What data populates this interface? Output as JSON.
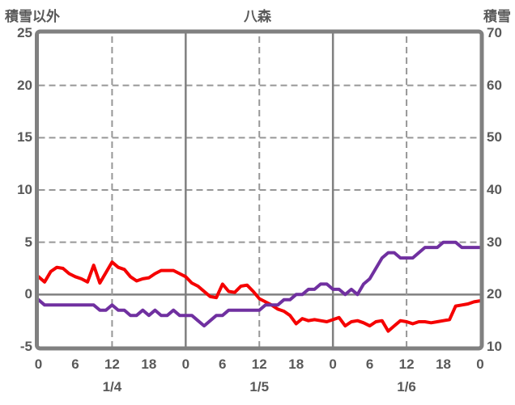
{
  "title": "八森",
  "left_axis": {
    "title": "積雪以外",
    "ticks": [
      "25",
      "20",
      "15",
      "10",
      "5",
      "0",
      "-5"
    ],
    "min": -5,
    "max": 25
  },
  "right_axis": {
    "title": "積雪",
    "ticks": [
      "70",
      "60",
      "50",
      "40",
      "30",
      "20",
      "10"
    ],
    "min": 10,
    "max": 70
  },
  "x_axis": {
    "hour_labels": [
      "0",
      "6",
      "12",
      "18",
      "0",
      "6",
      "12",
      "18",
      "0",
      "6",
      "12",
      "18",
      "0"
    ],
    "date_labels": [
      "1/4",
      "1/5",
      "1/6"
    ]
  },
  "colors": {
    "red_series": "#f50000",
    "purple_series": "#7030a0",
    "solid_grid": "#808080",
    "dashed_grid": "#979797",
    "border": "#808080",
    "text": "#595959",
    "background": "#ffffff"
  },
  "chart_data": {
    "type": "line",
    "x_unit": "hour",
    "x_start_hour": 0,
    "x_end_hour": 72,
    "hours_per_point": 1,
    "title": "八森",
    "left_axis_range": [
      -5,
      25
    ],
    "right_axis_range": [
      10,
      70
    ],
    "grid": "solid vertical lines at day boundaries (0h), dashed vertical at 12h of each day, dashed horizontal at left 5/10/15/20, solid horizontal zero line at left 0 (= right 20)",
    "series": [
      {
        "name": "積雪以外",
        "axis": "left",
        "color": "#f50000",
        "values": [
          1.7,
          1.2,
          2.2,
          2.6,
          2.5,
          2.0,
          1.7,
          1.5,
          1.2,
          2.8,
          1.1,
          2.1,
          3.1,
          2.6,
          2.4,
          1.7,
          1.3,
          1.5,
          1.6,
          2.0,
          2.3,
          2.3,
          2.3,
          2.0,
          1.7,
          1.1,
          0.8,
          0.3,
          -0.2,
          -0.3,
          1.0,
          0.3,
          0.2,
          0.8,
          0.9,
          0.3,
          -0.4,
          -0.7,
          -1.0,
          -1.4,
          -1.6,
          -2.0,
          -2.8,
          -2.3,
          -2.5,
          -2.4,
          -2.5,
          -2.6,
          -2.4,
          -2.2,
          -3.0,
          -2.6,
          -2.5,
          -2.7,
          -3.0,
          -2.6,
          -2.5,
          -3.5,
          -3.0,
          -2.5,
          -2.6,
          -2.8,
          -2.6,
          -2.6,
          -2.7,
          -2.6,
          -2.5,
          -2.4,
          -1.1,
          -1.0,
          -0.9,
          -0.7,
          -0.6
        ]
      },
      {
        "name": "積雪",
        "axis": "right",
        "color": "#7030a0",
        "values": [
          19,
          18,
          18,
          18,
          18,
          18,
          18,
          18,
          18,
          18,
          17,
          17,
          18,
          17,
          17,
          16,
          16,
          17,
          16,
          17,
          16,
          16,
          17,
          16,
          16,
          16,
          15,
          14,
          15,
          16,
          16,
          17,
          17,
          17,
          17,
          17,
          17,
          18,
          18,
          18,
          19,
          19,
          20,
          20,
          21,
          21,
          22,
          22,
          21,
          21,
          20,
          21,
          20,
          22,
          23,
          25,
          27,
          28,
          28,
          27,
          27,
          27,
          28,
          29,
          29,
          29,
          30,
          30,
          30,
          29,
          29,
          29,
          29
        ]
      }
    ]
  }
}
